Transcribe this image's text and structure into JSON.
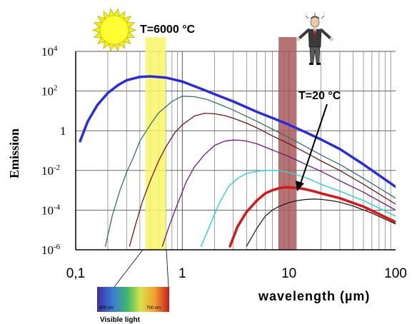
{
  "chart_data": {
    "type": "line",
    "title": "",
    "xlabel": "wavelength (µm)",
    "ylabel": "Emission",
    "x_scale": "log",
    "y_scale": "log",
    "xlim": [
      0.1,
      100
    ],
    "ylim": [
      1e-06,
      10000
    ],
    "x_ticks": [
      {
        "value": 0.1,
        "label": "0,1"
      },
      {
        "value": 1,
        "label": "1"
      },
      {
        "value": 10,
        "label": "10"
      },
      {
        "value": 100,
        "label": "100"
      }
    ],
    "y_ticks": [
      {
        "value": 10000,
        "base": "10",
        "exp": "4"
      },
      {
        "value": 100,
        "base": "10",
        "exp": "2"
      },
      {
        "value": 1,
        "base": "1",
        "exp": ""
      },
      {
        "value": 0.01,
        "base": "10",
        "exp": "-2"
      },
      {
        "value": 0.0001,
        "base": "10",
        "exp": "-4"
      },
      {
        "value": 1e-06,
        "base": "10",
        "exp": "-6"
      }
    ],
    "grid": true,
    "series": [
      {
        "color": "#2b2bdc",
        "width": 3.5,
        "x": [
          0.11,
          0.13,
          0.16,
          0.2,
          0.25,
          0.3,
          0.4,
          0.5,
          0.7,
          1,
          1.5,
          2,
          3,
          5,
          7,
          10,
          15,
          20,
          30,
          50,
          100
        ],
        "y": [
          0.3,
          3,
          20,
          80,
          200,
          350,
          520,
          550,
          480,
          300,
          130,
          70,
          30,
          9,
          4.4,
          2,
          0.75,
          0.36,
          0.12,
          0.02,
          0.0015
        ]
      },
      {
        "color": "#3a6e6e",
        "width": 1.3,
        "x": [
          0.19,
          0.22,
          0.26,
          0.3,
          0.35,
          0.4,
          0.5,
          0.6,
          0.8,
          1,
          1.3,
          1.7,
          2.3,
          3,
          5,
          7,
          10,
          15,
          20,
          30,
          50,
          100
        ],
        "y": [
          1.5e-06,
          5e-05,
          0.001,
          0.008,
          0.05,
          0.3,
          2,
          8,
          30,
          55,
          52,
          38,
          20,
          11,
          3,
          1.2,
          0.45,
          0.14,
          0.06,
          0.02,
          0.004,
          0.0004
        ]
      },
      {
        "color": "#6b1a1a",
        "width": 1.3,
        "x": [
          0.32,
          0.36,
          0.42,
          0.5,
          0.6,
          0.7,
          0.85,
          1,
          1.3,
          1.6,
          2,
          2.5,
          3,
          4,
          5,
          7,
          10,
          15,
          20,
          30,
          50,
          100
        ],
        "y": [
          1.5e-06,
          1.5e-05,
          0.00025,
          0.003,
          0.03,
          0.15,
          0.8,
          2,
          5.5,
          7.5,
          7.2,
          5.8,
          4.3,
          2.4,
          1.4,
          0.55,
          0.22,
          0.07,
          0.03,
          0.01,
          0.002,
          0.0002
        ]
      },
      {
        "color": "#6a1a7a",
        "width": 1.3,
        "x": [
          0.65,
          0.75,
          0.9,
          1.1,
          1.3,
          1.6,
          2,
          2.5,
          3,
          3.5,
          4,
          5,
          6,
          8,
          10,
          15,
          20,
          30,
          50,
          100
        ],
        "y": [
          1.5e-06,
          1.5e-05,
          0.0002,
          0.003,
          0.015,
          0.06,
          0.18,
          0.3,
          0.34,
          0.33,
          0.3,
          0.22,
          0.15,
          0.08,
          0.05,
          0.018,
          0.009,
          0.003,
          0.0008,
          0.0001
        ]
      },
      {
        "color": "#3fd3d3",
        "width": 1.6,
        "x": [
          1.5,
          1.8,
          2.2,
          2.7,
          3.3,
          4,
          5,
          6,
          7,
          8,
          9,
          10,
          12,
          15,
          20,
          30,
          50,
          100
        ],
        "y": [
          1.5e-06,
          1.5e-05,
          0.0002,
          0.0015,
          0.004,
          0.007,
          0.009,
          0.01,
          0.01,
          0.0098,
          0.009,
          0.008,
          0.006,
          0.004,
          0.002,
          0.0009,
          0.0003,
          5e-05
        ]
      },
      {
        "color": "#d41818",
        "width": 3.5,
        "x": [
          2.8,
          3.3,
          4,
          5,
          6,
          7,
          8,
          9,
          10,
          11,
          12,
          14,
          17,
          20,
          30,
          50,
          100
        ],
        "y": [
          1.5e-06,
          1.5e-05,
          8e-05,
          0.0003,
          0.0007,
          0.001,
          0.00125,
          0.0014,
          0.0014,
          0.00135,
          0.0013,
          0.00115,
          0.0009,
          0.0007,
          0.0004,
          0.00015,
          2.5e-05
        ]
      },
      {
        "color": "#111111",
        "width": 1.2,
        "x": [
          4,
          5,
          6,
          7,
          8,
          10,
          12,
          14,
          17,
          20,
          25,
          30,
          40,
          60,
          100
        ],
        "y": [
          1.5e-06,
          1.2e-05,
          5e-05,
          0.0001,
          0.00015,
          0.00024,
          0.0003,
          0.00034,
          0.00036,
          0.00035,
          0.0003,
          0.00025,
          0.00016,
          7e-05,
          2e-05
        ]
      }
    ],
    "bands": [
      {
        "x1": 0.45,
        "x2": 0.7,
        "color": "#f8f66a",
        "opacity": 0.85
      },
      {
        "x1": 8,
        "x2": 11.8,
        "color": "#a85a5a",
        "opacity": 0.85
      }
    ],
    "annotations": {
      "hot": "T=6000 °C",
      "cold": "T=20 °C"
    }
  },
  "legend_strip": {
    "label": "Visible light",
    "left_tick": "400 nm",
    "right_tick": "700 nm"
  },
  "pictures": {
    "sun": "sun-icon",
    "person": "person-icon"
  }
}
